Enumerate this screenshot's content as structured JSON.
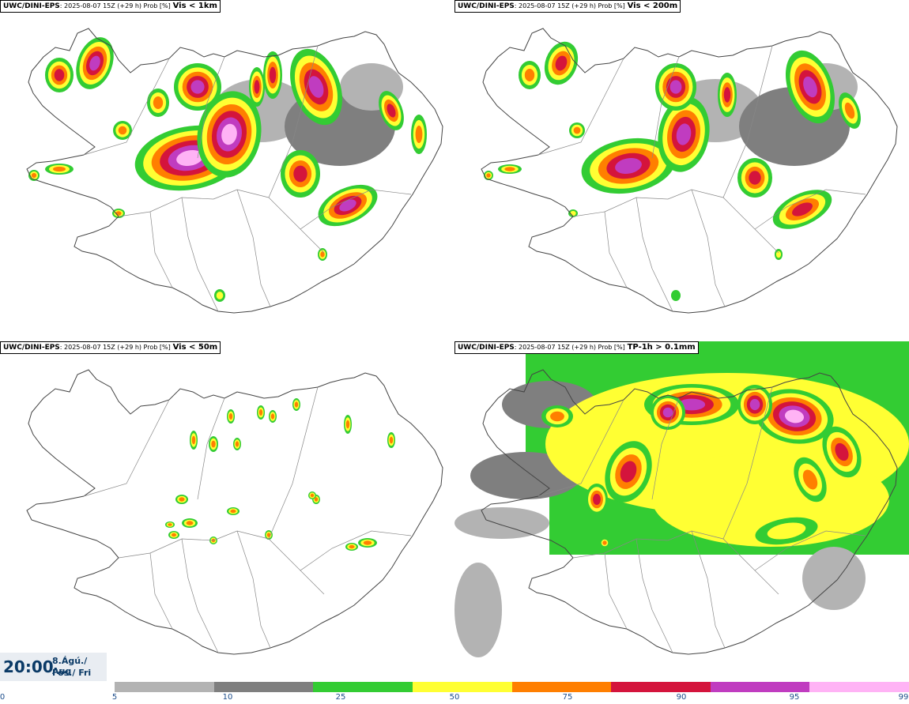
{
  "panels": [
    {
      "model": "UWC/DINI-EPS",
      "meta": ": 2025-08-07 15Z (+29 h) Prob [%]",
      "variable": "Vis < 1km"
    },
    {
      "model": "UWC/DINI-EPS",
      "meta": ": 2025-08-07 15Z (+29 h) Prob [%]",
      "variable": "Vis < 200m"
    },
    {
      "model": "UWC/DINI-EPS",
      "meta": ": 2025-08-07 15Z (+29 h) Prob [%]",
      "variable": "Vis < 50m"
    },
    {
      "model": "UWC/DINI-EPS",
      "meta": ": 2025-08-07 15Z (+29 h) Prob [%]",
      "variable": "TP-1h > 0.1mm"
    }
  ],
  "time": {
    "value": "20:00",
    "date_line1": "8.Ágú./ Aug",
    "date_line2": "Fös./ Fri"
  },
  "colorbar": {
    "ticks": [
      "0",
      "5",
      "10",
      "25",
      "50",
      "75",
      "90",
      "95",
      "99"
    ],
    "colors": [
      "#b3b3b3",
      "#7f7f7f",
      "#33cc33",
      "#ffff33",
      "#ff7f00",
      "#d4143c",
      "#c03cc0",
      "#ffb3f5"
    ]
  },
  "map_colors": {
    "gray_light": "#b3b3b3",
    "gray_dark": "#7f7f7f",
    "green": "#33cc33",
    "yellow": "#ffff33",
    "orange": "#ff7f00",
    "red": "#d4143c",
    "magenta": "#c03cc0",
    "pink": "#ffb3f5"
  }
}
